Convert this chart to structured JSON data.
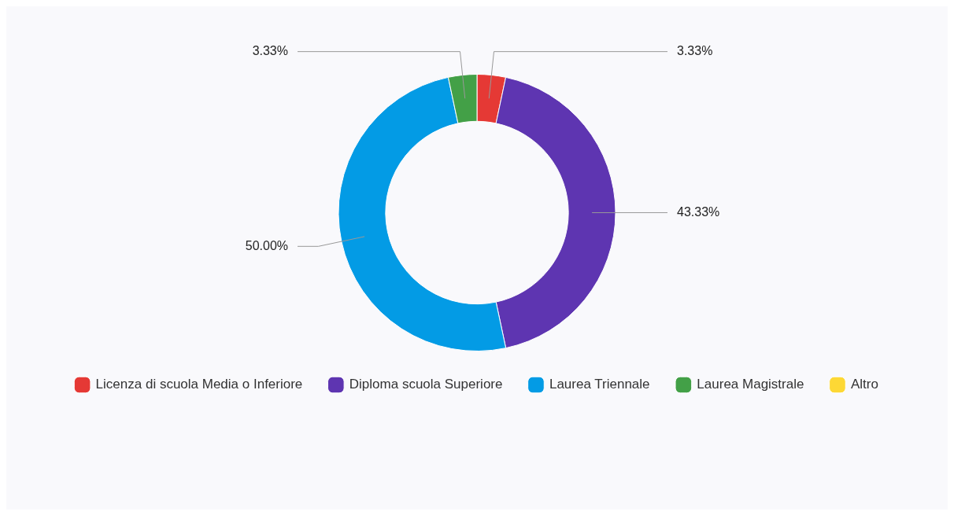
{
  "chart_data": {
    "type": "donut",
    "categories": [
      "Licenza di scuola Media o Inferiore",
      "Diploma scuola Superiore",
      "Laurea Triennale",
      "Laurea Magistrale",
      "Altro"
    ],
    "values": [
      3.33,
      43.33,
      50.0,
      3.33,
      0
    ],
    "colors": [
      "#e53935",
      "#5e35b1",
      "#039be5",
      "#43a047",
      "#fdd835"
    ],
    "value_labels": [
      "3.33%",
      "43.33%",
      "50.00%",
      "3.33%",
      null
    ],
    "legend": "bottom"
  }
}
